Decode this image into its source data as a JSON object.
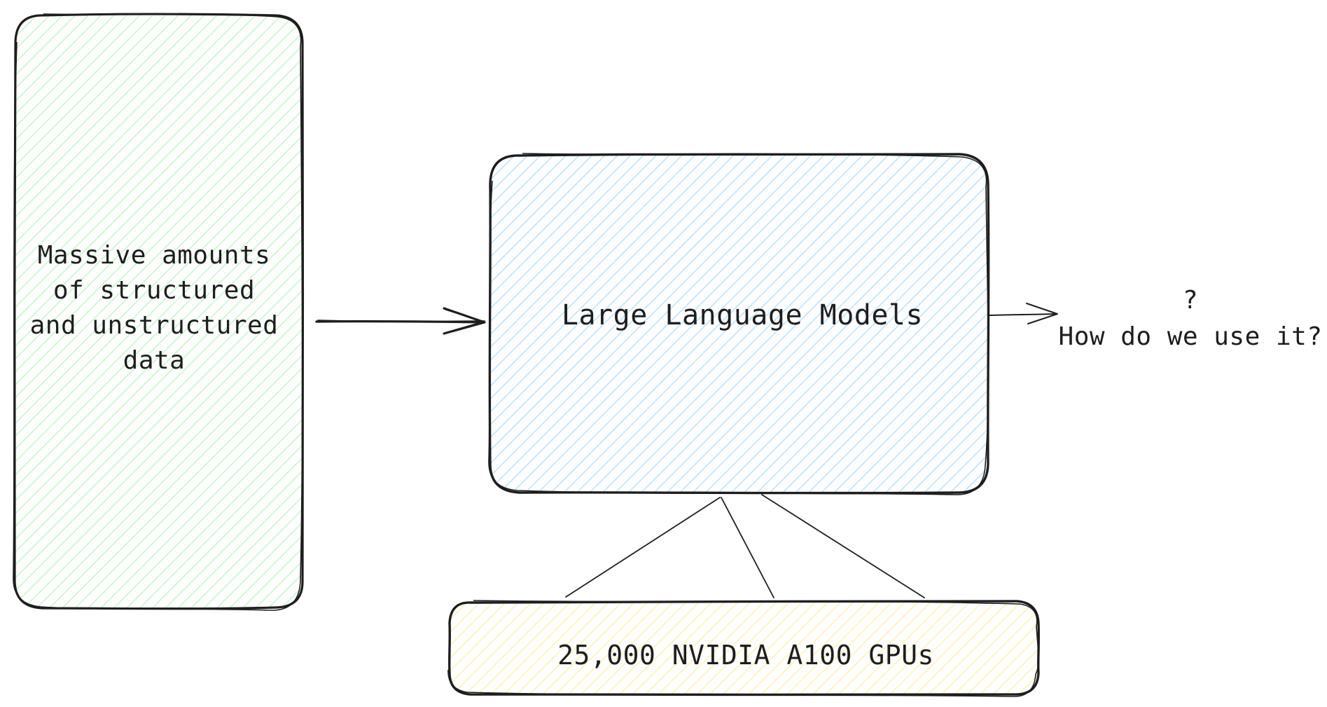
{
  "nodes": {
    "data_source": {
      "text": "Massive amounts\nof structured\nand unstructured\ndata",
      "fill_color": "#b2f2bb"
    },
    "llm": {
      "text": "Large Language Models",
      "fill_color": "#a5d8ff"
    },
    "gpus": {
      "text": "25,000 NVIDIA A100 GPUs",
      "fill_color": "#ffec99"
    }
  },
  "question": {
    "text": "?\nHow do we use it?"
  },
  "colors": {
    "stroke": "#1e1e1e",
    "background": "#ffffff"
  }
}
